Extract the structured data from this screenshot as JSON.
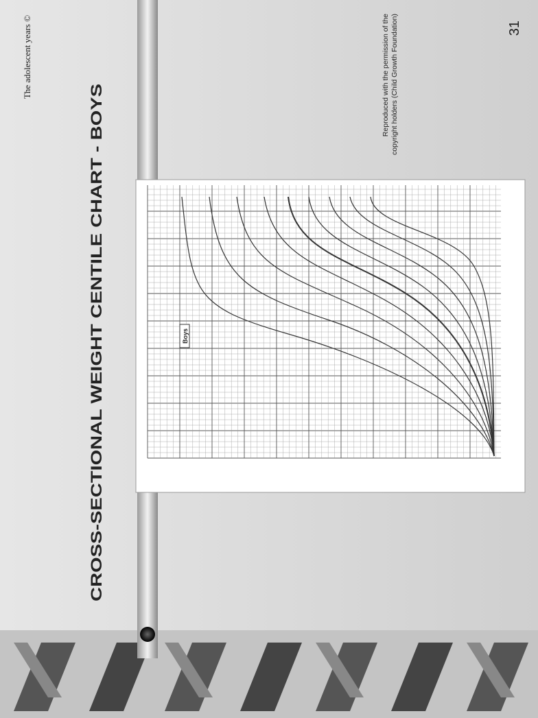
{
  "header": {
    "running_title": "The adolescent years ©",
    "page_number": "31"
  },
  "slide": {
    "title": "CROSS-SECTIONAL WEIGHT CENTILE CHART - BOYS",
    "credit": [
      "Reproduced  with  the  permission of  the",
      "copyright holders (Child Growth Foundation)"
    ],
    "chart_label": "Boys"
  }
}
